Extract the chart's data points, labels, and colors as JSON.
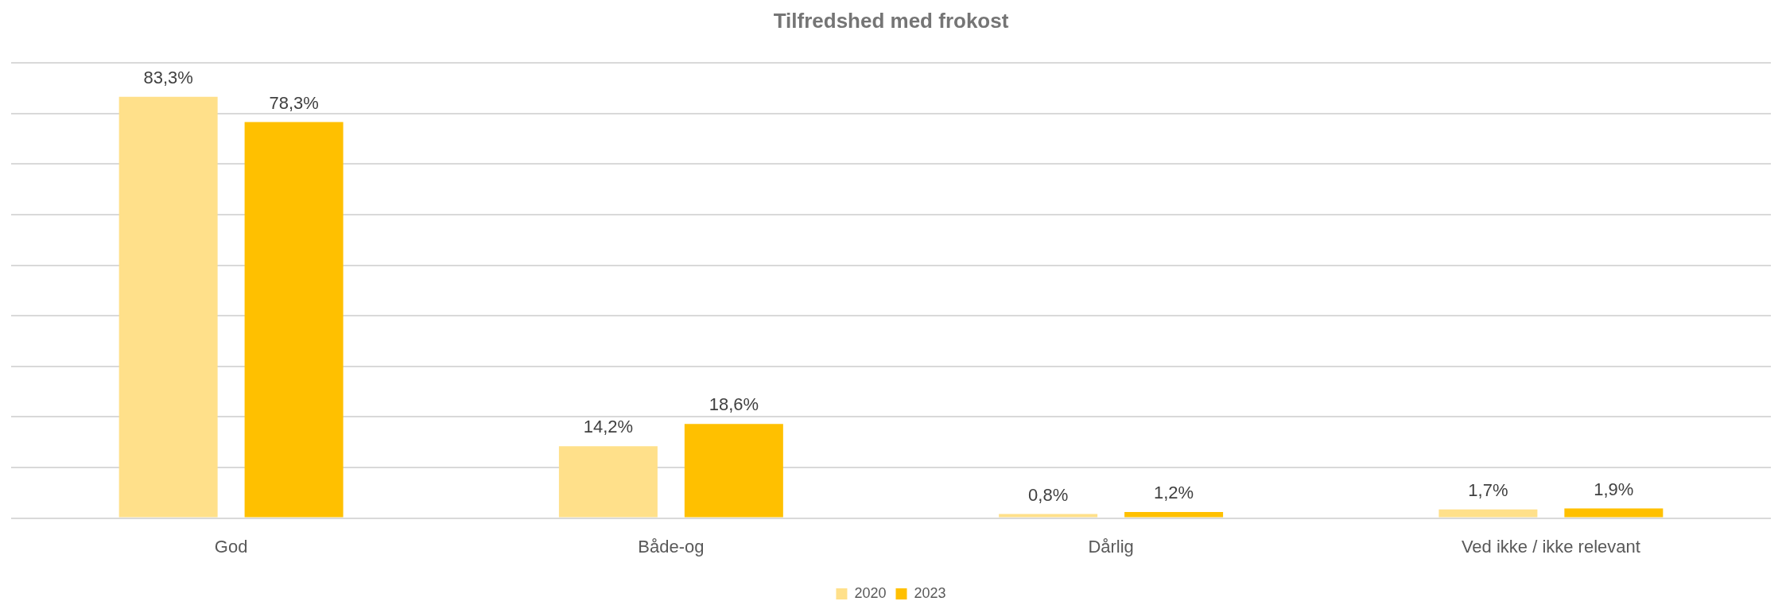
{
  "chart_data": {
    "type": "bar",
    "title": "Tilfredshed med frokost",
    "categories": [
      "God",
      "Både-og",
      "Dårlig",
      "Ved ikke / ikke relevant"
    ],
    "series": [
      {
        "name": "2020",
        "color": "#ffe08a",
        "values": [
          83.3,
          14.2,
          0.8,
          1.7
        ],
        "value_labels": [
          "83,3%",
          "14,2%",
          "0,8%",
          "1,7%"
        ]
      },
      {
        "name": "2023",
        "color": "#ffc000",
        "values": [
          78.3,
          18.6,
          1.2,
          1.9
        ],
        "value_labels": [
          "78,3%",
          "18,6%",
          "1,2%",
          "1,9%"
        ]
      }
    ],
    "ylim": [
      0,
      90
    ],
    "yticks": [
      {
        "value": 0,
        "label": null
      },
      {
        "value": 10,
        "label": null
      },
      {
        "value": 20,
        "label": null
      },
      {
        "value": 30,
        "label": null
      },
      {
        "value": 40,
        "label": null
      },
      {
        "value": 50,
        "label": null
      },
      {
        "value": 60,
        "label": null
      },
      {
        "value": 70,
        "label": null
      },
      {
        "value": 80,
        "label": null
      },
      {
        "value": 90,
        "label": null
      }
    ],
    "tick_labels": "x",
    "grid": "y",
    "legend": "bottom"
  }
}
